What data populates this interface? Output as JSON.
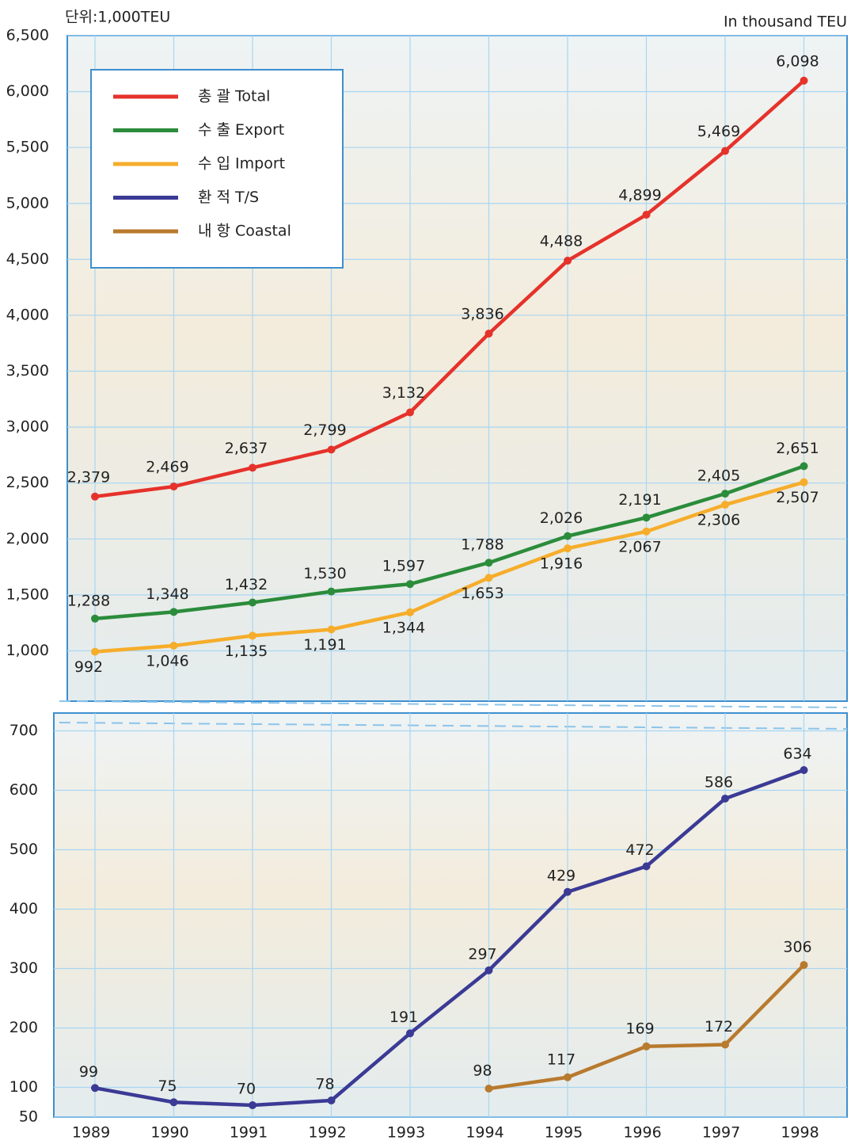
{
  "chart_data": {
    "type": "line",
    "ylabel": "단위:1,000TEU",
    "annotation": "In thousand TEU",
    "categories": [
      "1989",
      "1990",
      "1991",
      "1992",
      "1993",
      "1994",
      "1995",
      "1996",
      "1997",
      "1998"
    ],
    "ylim": [
      550,
      6500
    ],
    "yticks": [
      {
        "value": 1000,
        "label": "1,000"
      },
      {
        "value": 1500,
        "label": "1,500"
      },
      {
        "value": 2000,
        "label": "2,000"
      },
      {
        "value": 2500,
        "label": "2,500"
      },
      {
        "value": 3000,
        "label": "3,000"
      },
      {
        "value": 3500,
        "label": "3,500"
      },
      {
        "value": 4000,
        "label": "4,000"
      },
      {
        "value": 4500,
        "label": "4,500"
      },
      {
        "value": 5000,
        "label": "5,000"
      },
      {
        "value": 5500,
        "label": "5,500"
      },
      {
        "value": 6000,
        "label": "6,000"
      },
      {
        "value": 6500,
        "label": "6,500"
      }
    ],
    "y2lim": [
      50,
      730
    ],
    "y2ticks": [
      50,
      100,
      200,
      300,
      400,
      500,
      600,
      700
    ],
    "grid": true,
    "series": [
      {
        "name": "총 괄 Total",
        "color": "#e5322b",
        "values": [
          2379,
          2469,
          2637,
          2799,
          3132,
          3836,
          4488,
          4899,
          5469,
          6098
        ],
        "value_labels": [
          "2,379",
          "2,469",
          "2,637",
          "2,799",
          "3,132",
          "3,836",
          "4,488",
          "4,899",
          "5,469",
          "6,098"
        ]
      },
      {
        "name": "수 출 Export",
        "color": "#2b8c3b",
        "values": [
          1288,
          1348,
          1432,
          1530,
          1597,
          1788,
          2026,
          2191,
          2405,
          2651
        ],
        "value_labels": [
          "1,288",
          "1,348",
          "1,432",
          "1,530",
          "1,597",
          "1,788",
          "2,026",
          "2,191",
          "2,405",
          "2,651"
        ]
      },
      {
        "name": "수 입 Import",
        "color": "#f6ad2b",
        "values": [
          992,
          1046,
          1135,
          1191,
          1344,
          1653,
          1916,
          2067,
          2306,
          2507
        ],
        "value_labels": [
          "992",
          "1,046",
          "1,135",
          "1,191",
          "1,344",
          "1,653",
          "1,916",
          "2,067",
          "2,306",
          "2,507"
        ]
      },
      {
        "name": "환 적 T/S",
        "color": "#3b3a95",
        "axis": "y2",
        "values": [
          99,
          75,
          70,
          78,
          191,
          297,
          429,
          472,
          586,
          634
        ]
      },
      {
        "name": "내 항 Coastal",
        "color": "#b87a2e",
        "axis": "y2",
        "values": [
          null,
          null,
          null,
          null,
          null,
          98,
          117,
          169,
          172,
          306
        ]
      }
    ]
  }
}
